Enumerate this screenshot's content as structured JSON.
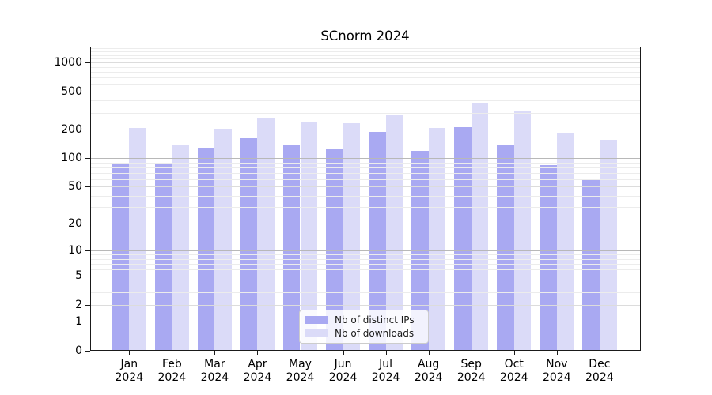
{
  "title": "SCnorm 2024",
  "legend": {
    "items": [
      {
        "label": "Nb of distinct IPs",
        "color": "#a9a9f2"
      },
      {
        "label": "Nb of downloads",
        "color": "#dbdbf8"
      }
    ]
  },
  "chart_data": {
    "type": "bar",
    "title": "SCnorm 2024",
    "categories": [
      "Jan",
      "Feb",
      "Mar",
      "Apr",
      "May",
      "Jun",
      "Jul",
      "Aug",
      "Sep",
      "Oct",
      "Nov",
      "Dec"
    ],
    "category_year": "2024",
    "series": [
      {
        "name": "Nb of distinct IPs",
        "color": "#a9a9f2",
        "values": [
          88,
          89,
          129,
          161,
          139,
          124,
          187,
          120,
          211,
          138,
          84,
          59
        ]
      },
      {
        "name": "Nb of downloads",
        "color": "#dbdbf8",
        "values": [
          208,
          136,
          205,
          264,
          236,
          234,
          285,
          208,
          373,
          308,
          185,
          157
        ]
      }
    ],
    "y_scale": "log1p",
    "y_ticks": [
      0,
      1,
      2,
      5,
      10,
      20,
      50,
      100,
      200,
      500,
      1000
    ],
    "y_tick_labels": [
      "0",
      "1",
      "2",
      "5",
      "10",
      "20",
      "50",
      "100",
      "200",
      "500",
      "1000"
    ],
    "y_minor_ticks": [
      3,
      4,
      6,
      7,
      8,
      9,
      30,
      40,
      60,
      70,
      80,
      90,
      300,
      400,
      600,
      700,
      800,
      900,
      1100,
      1200,
      1300,
      1400
    ],
    "ylim": [
      0,
      1460
    ],
    "grid": true,
    "legend_position": "lower center",
    "colors": {
      "grid_minor": "#ececec",
      "grid_major": "#dcdcdc",
      "grid_decade": "#b8b8b8",
      "axis": "#1a1a1a"
    }
  }
}
